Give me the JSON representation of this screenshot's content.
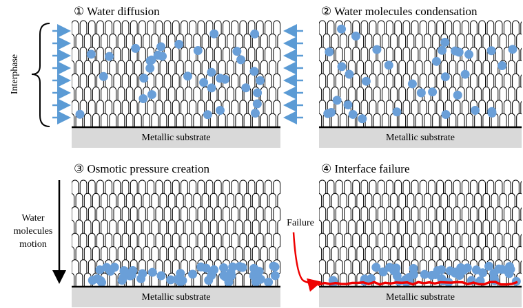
{
  "panels": [
    {
      "title": "① Water diffusion",
      "substrate": "Metallic substrate"
    },
    {
      "title": "② Water molecules condensation",
      "substrate": "Metallic substrate"
    },
    {
      "title": "③ Osmotic pressure creation",
      "substrate": "Metallic substrate"
    },
    {
      "title": "④ Interface failure",
      "substrate": "Metallic substrate"
    }
  ],
  "interphase_label": "Interphase",
  "motion_label": [
    "Water",
    "molecules",
    "motion"
  ],
  "failure_label": "Failure"
}
